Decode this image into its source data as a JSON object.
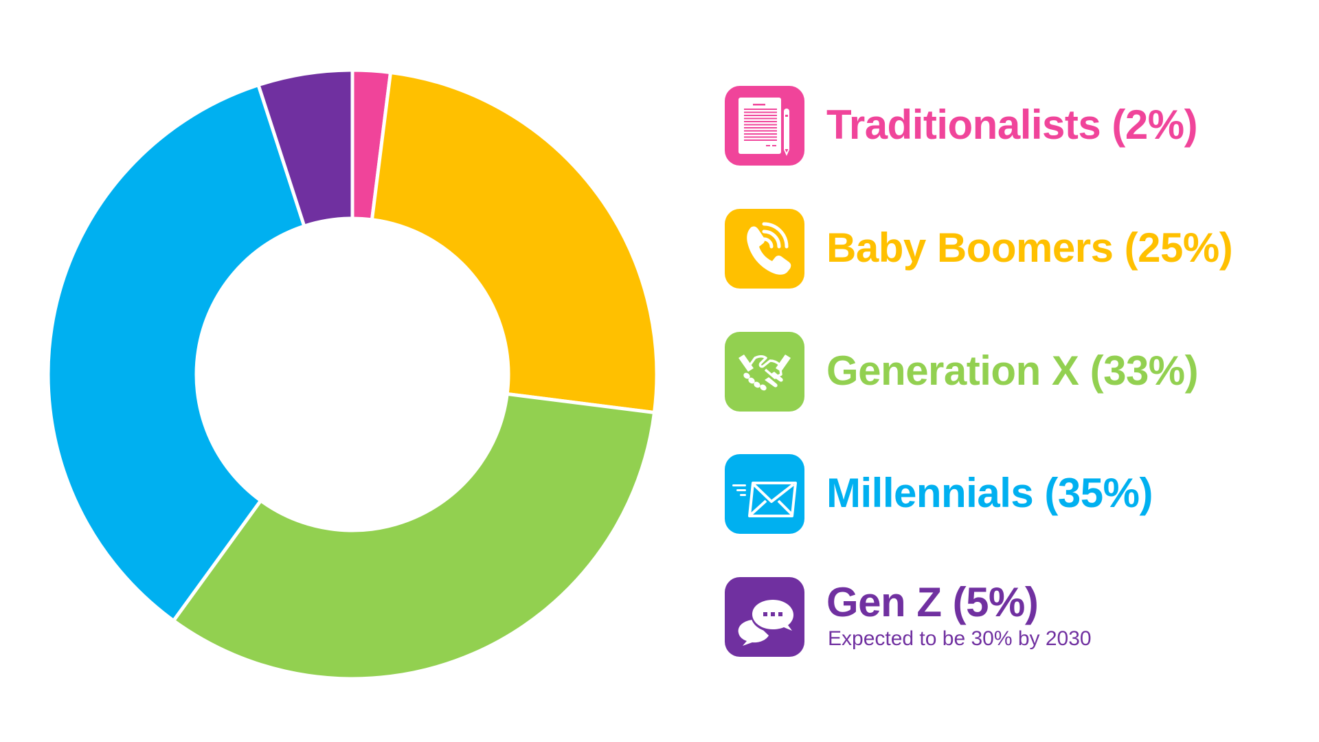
{
  "chart_data": {
    "type": "pie",
    "subtype": "donut",
    "title": "",
    "start_angle": "12 o'clock, clockwise",
    "categories": [
      "Traditionalists",
      "Baby Boomers",
      "Generation X",
      "Millennials",
      "Gen Z"
    ],
    "values": [
      2,
      25,
      33,
      35,
      5
    ],
    "unit": "%",
    "colors": [
      "#F0449A",
      "#FFC000",
      "#92D050",
      "#00B0F0",
      "#7030A0"
    ],
    "legend_position": "right",
    "annotations": [
      {
        "category": "Gen Z",
        "text": "Expected to be 30% by 2030"
      }
    ]
  },
  "legend": {
    "items": [
      {
        "key": "traditionalists",
        "label": "Traditionalists (2%)",
        "icon": "document-pencil-icon",
        "color": "#F0449A"
      },
      {
        "key": "baby_boomers",
        "label": "Baby Boomers (25%)",
        "icon": "phone-ringing-icon",
        "color": "#FFC000"
      },
      {
        "key": "generation_x",
        "label": "Generation X (33%)",
        "icon": "handshake-icon",
        "color": "#92D050"
      },
      {
        "key": "millennials",
        "label": "Millennials (35%)",
        "icon": "email-send-icon",
        "color": "#00B0F0"
      },
      {
        "key": "gen_z",
        "label": "Gen Z (5%)",
        "sublabel": "Expected to be 30% by 2030",
        "icon": "chat-bubbles-icon",
        "color": "#7030A0"
      }
    ]
  }
}
